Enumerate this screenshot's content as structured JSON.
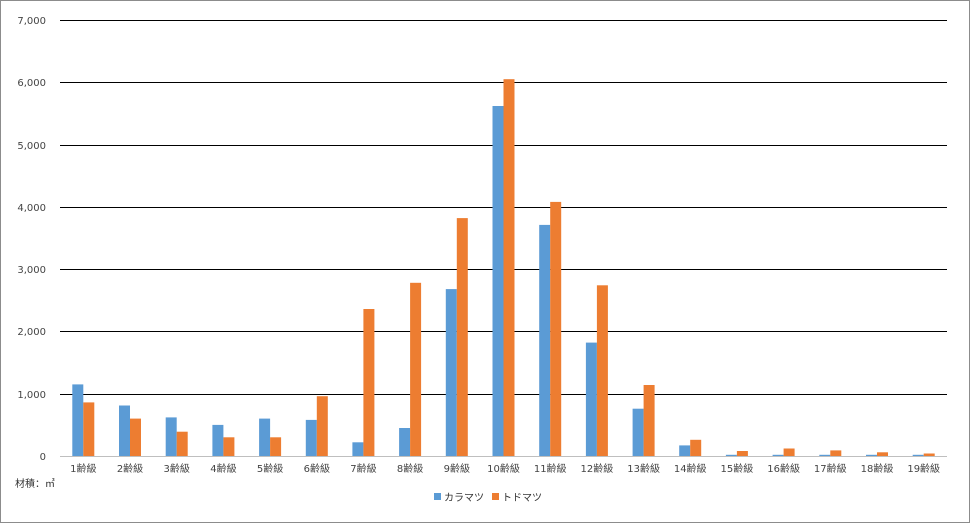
{
  "chart_data": {
    "type": "bar",
    "categories": [
      "1齢級",
      "2齢級",
      "3齢級",
      "4齢級",
      "5齢級",
      "6齢級",
      "7齢級",
      "8齢級",
      "9齢級",
      "10齢級",
      "11齢級",
      "12齢級",
      "13齢級",
      "14齢級",
      "15齢級",
      "16齢級",
      "17齢級",
      "18齢級",
      "19齢級"
    ],
    "series": [
      {
        "name": "カラマツ",
        "color": "#5b9bd5",
        "values": [
          1150,
          810,
          620,
          500,
          600,
          580,
          220,
          450,
          2680,
          5620,
          3710,
          1820,
          760,
          170,
          20,
          20,
          20,
          20,
          20
        ]
      },
      {
        "name": "トドマツ",
        "color": "#ed7d31",
        "values": [
          860,
          600,
          390,
          300,
          300,
          960,
          2360,
          2780,
          3820,
          6050,
          4080,
          2740,
          1140,
          260,
          80,
          120,
          90,
          60,
          40
        ]
      }
    ],
    "ylim": [
      0,
      7000
    ],
    "yticks": [
      0,
      1000,
      2000,
      3000,
      4000,
      5000,
      6000,
      7000
    ],
    "ytick_labels": [
      "0",
      "1,000",
      "2,000",
      "3,000",
      "4,000",
      "5,000",
      "6,000",
      "7,000"
    ],
    "unit_label": "材積：㎥",
    "grid": true,
    "legend_position": "bottom"
  }
}
